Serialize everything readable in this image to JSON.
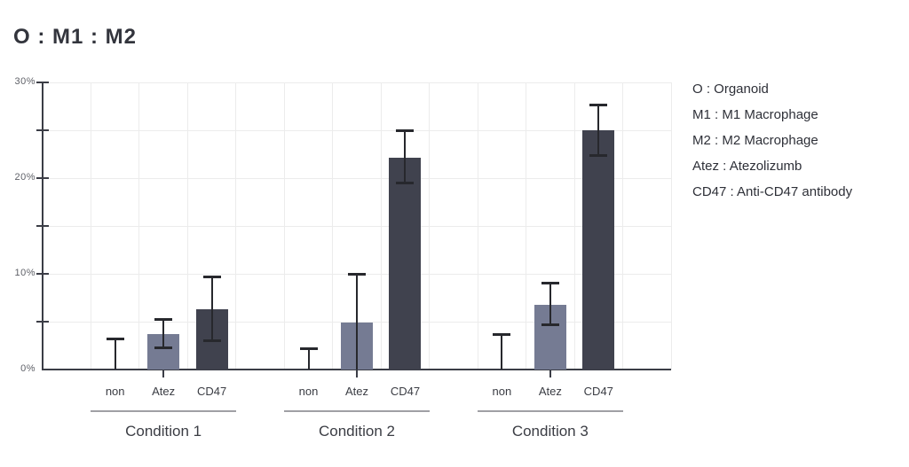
{
  "title": "O : M1 : M2",
  "chart_data": {
    "type": "bar",
    "title": "O : M1 : M2",
    "ylabel": "",
    "xlabel": "",
    "y_axis": {
      "min": 0,
      "max": 30,
      "unit": "%",
      "tick_step": 5,
      "labels": [
        {
          "value": 0,
          "text": "0%"
        },
        {
          "value": 10,
          "text": "10%"
        },
        {
          "value": 20,
          "text": "20%"
        },
        {
          "value": 30,
          "text": "30%"
        }
      ]
    },
    "grid": true,
    "legend_position": "right",
    "categories": [
      "non",
      "Atez",
      "CD47"
    ],
    "colors": {
      "non": "transparent",
      "Atez": "#757b93",
      "CD47": "#40424e"
    },
    "error_bar_color": "#27282d",
    "groups": [
      {
        "label": "Condition 1",
        "bars": [
          {
            "category": "non",
            "value": 0,
            "err_low": 0,
            "err_high": 3.2
          },
          {
            "category": "Atez",
            "value": 3.7,
            "err_low": 2.2,
            "err_high": 5.3
          },
          {
            "category": "CD47",
            "value": 6.3,
            "err_low": 3.0,
            "err_high": 9.7
          }
        ]
      },
      {
        "label": "Condition 2",
        "bars": [
          {
            "category": "non",
            "value": 0,
            "err_low": 0,
            "err_high": 2.2
          },
          {
            "category": "Atez",
            "value": 4.9,
            "err_low": 0,
            "err_high": 10.0
          },
          {
            "category": "CD47",
            "value": 22.1,
            "err_low": 19.4,
            "err_high": 25.0
          }
        ]
      },
      {
        "label": "Condition 3",
        "bars": [
          {
            "category": "non",
            "value": 0,
            "err_low": 0,
            "err_high": 3.7
          },
          {
            "category": "Atez",
            "value": 6.8,
            "err_low": 4.6,
            "err_high": 9.1
          },
          {
            "category": "CD47",
            "value": 25.0,
            "err_low": 22.3,
            "err_high": 27.7
          }
        ]
      }
    ]
  },
  "legend": {
    "items": [
      "O : Organoid",
      "M1 : M1 Macrophage",
      "M2 : M2 Macrophage",
      "Atez : Atezolizumb",
      "CD47 : Anti-CD47 antibody"
    ]
  }
}
